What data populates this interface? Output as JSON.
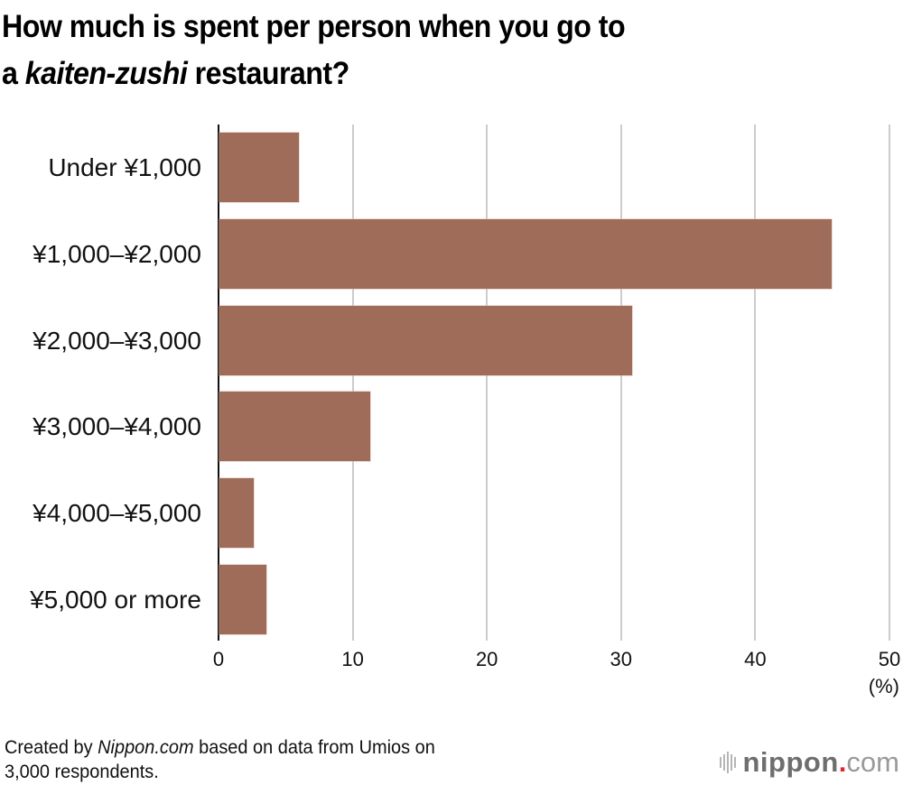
{
  "title": {
    "line1": "How much is spent per person when you go to",
    "line2_prefix": "a ",
    "line2_italic": "kaiten-zushi",
    "line2_suffix": " restaurant?"
  },
  "chart_data": {
    "type": "bar",
    "orientation": "horizontal",
    "title": "How much is spent per person when you go to a kaiten-zushi restaurant?",
    "categories": [
      "Under ¥1,000",
      "¥1,000–¥2,000",
      "¥2,000–¥3,000",
      "¥3,000–¥4,000",
      "¥4,000–¥5,000",
      "¥5,000 or more"
    ],
    "values": [
      6.0,
      45.7,
      30.8,
      11.3,
      2.6,
      3.6
    ],
    "xlabel": "(%)",
    "ylabel": "",
    "xlim": [
      0,
      50
    ],
    "xticks": [
      "0",
      "10",
      "20",
      "30",
      "40",
      "50"
    ],
    "grid": true,
    "bar_color": "#9e6c58",
    "legend": null
  },
  "axis": {
    "unit_label": "(%)"
  },
  "footer": {
    "note_prefix": "Created by ",
    "note_italic": "Nippon.com",
    "note_suffix": " based on data from Umios on",
    "note_line2": "3,000 respondents.",
    "logo_name": "nippon",
    "logo_dot": ".",
    "logo_tld": "com",
    "logo_dot_color": "#e4232b"
  }
}
